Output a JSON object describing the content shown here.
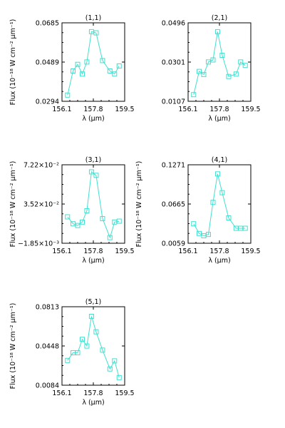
{
  "chart_data": [
    {
      "type": "line",
      "title": "(1,1)",
      "xlabel": "λ (μm)",
      "ylabel": "Flux (10⁻¹⁸ W cm⁻² μm⁻¹)",
      "xlim": [
        156.1,
        159.5
      ],
      "ylim": [
        0.0294,
        0.0685
      ],
      "xticks": [
        "156.1",
        "157.8",
        "159.5"
      ],
      "yticks": [
        "0.0294",
        "0.0489",
        "0.0685"
      ],
      "color": "#40e0d0",
      "marker": "square",
      "series": [
        {
          "x": [
            156.4,
            156.7,
            156.95,
            157.2,
            157.45,
            157.7,
            157.95,
            158.3,
            158.7,
            158.95,
            159.2
          ],
          "y": [
            0.0325,
            0.0445,
            0.0478,
            0.043,
            0.049,
            0.0641,
            0.0635,
            0.0497,
            0.0445,
            0.043,
            0.047
          ]
        }
      ]
    },
    {
      "type": "line",
      "title": "(2,1)",
      "xlabel": "λ (μm)",
      "ylabel": "",
      "xlim": [
        156.1,
        159.5
      ],
      "ylim": [
        0.0107,
        0.0496
      ],
      "xticks": [
        "156.1",
        "157.8",
        "159.5"
      ],
      "yticks": [
        "0.0107",
        "0.0301",
        "0.0496"
      ],
      "color": "#40e0d0",
      "marker": "square",
      "series": [
        {
          "x": [
            156.4,
            156.7,
            156.95,
            157.2,
            157.45,
            157.7,
            157.95,
            158.3,
            158.7,
            158.95,
            159.2
          ],
          "y": [
            0.014,
            0.0255,
            0.024,
            0.0302,
            0.0312,
            0.0452,
            0.0335,
            0.023,
            0.0242,
            0.0302,
            0.0285
          ]
        }
      ]
    },
    {
      "type": "line",
      "title": "(3,1)",
      "xlabel": "λ (μm)",
      "ylabel": "Flux (10⁻¹⁸ W cm⁻² μm⁻¹)",
      "xlim": [
        156.1,
        159.5
      ],
      "ylim": [
        -0.0185,
        0.0722
      ],
      "xticks": [
        "156.1",
        "157.8",
        "159.5"
      ],
      "yticks": [
        "−1.85×10⁻³",
        "3.52×10⁻²",
        "7.22×10⁻²"
      ],
      "color": "#40e0d0",
      "marker": "square",
      "series": [
        {
          "x": [
            156.4,
            156.7,
            156.95,
            157.2,
            157.45,
            157.7,
            157.95,
            158.3,
            158.7,
            158.95,
            159.2
          ],
          "y": [
            0.012,
            0.004,
            0.002,
            0.006,
            0.019,
            0.064,
            0.06,
            0.01,
            -0.012,
            0.006,
            0.007
          ]
        }
      ]
    },
    {
      "type": "line",
      "title": "(4,1)",
      "xlabel": "λ (μm)",
      "ylabel": "Flux (10⁻¹⁸ W cm⁻² μm⁻¹)",
      "xlim": [
        156.1,
        159.5
      ],
      "ylim": [
        0.0059,
        0.1271
      ],
      "xticks": [
        "156.1",
        "157.8",
        "159.5"
      ],
      "yticks": [
        "0.0059",
        "0.0665",
        "0.1271"
      ],
      "color": "#40e0d0",
      "marker": "square",
      "series": [
        {
          "x": [
            156.4,
            156.7,
            156.95,
            157.2,
            157.45,
            157.7,
            157.95,
            158.3,
            158.7,
            158.95,
            159.2
          ],
          "y": [
            0.036,
            0.021,
            0.0175,
            0.0195,
            0.069,
            0.113,
            0.084,
            0.045,
            0.029,
            0.029,
            0.029
          ]
        }
      ]
    },
    {
      "type": "line",
      "title": "(5,1)",
      "xlabel": "λ (μm)",
      "ylabel": "Flux (10⁻¹⁸ W cm⁻² μm⁻¹)",
      "xlim": [
        156.1,
        159.5
      ],
      "ylim": [
        0.0084,
        0.0813
      ],
      "xticks": [
        "156.1",
        "157.8",
        "159.5"
      ],
      "yticks": [
        "0.0084",
        "0.0448",
        "0.0813"
      ],
      "color": "#40e0d0",
      "marker": "square",
      "series": [
        {
          "x": [
            156.4,
            156.7,
            156.95,
            157.2,
            157.45,
            157.7,
            157.95,
            158.3,
            158.7,
            158.95,
            159.2
          ],
          "y": [
            0.0314,
            0.0386,
            0.0386,
            0.051,
            0.0448,
            0.0724,
            0.058,
            0.041,
            0.0235,
            0.031,
            0.0155
          ]
        }
      ]
    }
  ]
}
